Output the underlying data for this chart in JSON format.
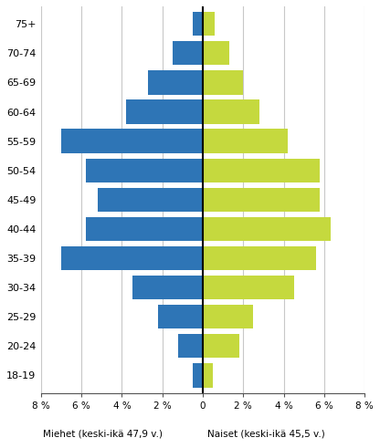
{
  "age_groups": [
    "75+",
    "70-74",
    "65-69",
    "60-64",
    "55-59",
    "50-54",
    "45-49",
    "40-44",
    "35-39",
    "30-34",
    "25-29",
    "20-24",
    "18-19"
  ],
  "men_values": [
    0.5,
    1.5,
    2.7,
    3.8,
    7.0,
    5.8,
    5.2,
    5.8,
    7.0,
    3.5,
    2.2,
    1.2,
    0.5
  ],
  "women_values": [
    0.6,
    1.3,
    2.0,
    2.8,
    4.2,
    5.8,
    5.8,
    6.3,
    5.6,
    4.5,
    2.5,
    1.8,
    0.5
  ],
  "men_color": "#2E75B6",
  "women_color": "#C5D93E",
  "xlabel_men": "Miehet (keski-ikä 47,9 v.)",
  "xlabel_women": "Naiset (keski-ikä 45,5 v.)",
  "xlim": 8,
  "background_color": "#ffffff",
  "grid_color": "#c8c8c8",
  "bar_height": 0.82
}
